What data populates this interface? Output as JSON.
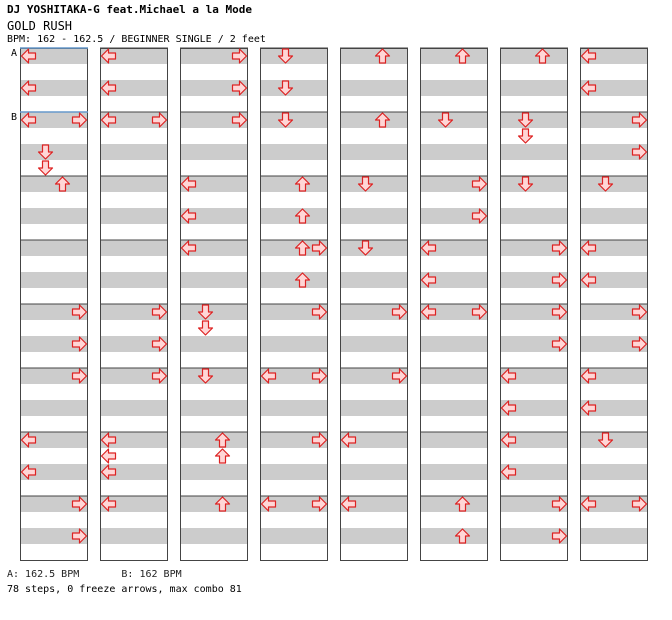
{
  "header": {
    "artist": "DJ YOSHITAKA-G feat.Michael a la Mode",
    "title": "GOLD RUSH",
    "info": "BPM: 162 - 162.5 / BEGINNER SINGLE / 2 feet"
  },
  "markers": [
    {
      "label": "A",
      "measure": 0,
      "beat": 0,
      "color": "#6699cc"
    },
    {
      "label": "B",
      "measure": 1,
      "beat": 0,
      "color": "#6699cc"
    }
  ],
  "legend": {
    "a": "A: 162.5 BPM",
    "b": "B: 162 BPM"
  },
  "summary": "78 steps, 0 freeze arrows, max combo 81",
  "colors": {
    "stripe": "#cccccc",
    "arrow_fill": "#ffd6d6",
    "arrow_stroke": "#dd2222",
    "column_border": "#444444"
  },
  "layout": {
    "columns": 8,
    "measures_per_column": 8,
    "beats_per_measure": 4
  },
  "steps": [
    [
      [
        0,
        "L"
      ],
      [
        2,
        "L"
      ]
    ],
    [
      [
        0,
        "L"
      ],
      [
        0,
        "R"
      ],
      [
        2,
        "D"
      ],
      [
        3,
        "D"
      ]
    ],
    [
      [
        0,
        "U"
      ]
    ],
    [],
    [
      [
        0,
        "R"
      ],
      [
        2,
        "R"
      ]
    ],
    [
      [
        0,
        "R"
      ]
    ],
    [
      [
        0,
        "L"
      ],
      [
        2,
        "L"
      ]
    ],
    [
      [
        0,
        "R"
      ],
      [
        2,
        "R"
      ]
    ],
    [
      [
        0,
        "L"
      ],
      [
        2,
        "L"
      ]
    ],
    [
      [
        0,
        "L"
      ],
      [
        0,
        "R"
      ]
    ],
    [],
    [],
    [
      [
        0,
        "R"
      ],
      [
        2,
        "R"
      ]
    ],
    [
      [
        0,
        "R"
      ]
    ],
    [
      [
        0,
        "L"
      ],
      [
        1,
        "L"
      ],
      [
        2,
        "L"
      ]
    ],
    [
      [
        0,
        "L"
      ]
    ],
    [
      [
        0,
        "R"
      ],
      [
        2,
        "R"
      ]
    ],
    [
      [
        0,
        "R"
      ]
    ],
    [
      [
        0,
        "L"
      ],
      [
        2,
        "L"
      ]
    ],
    [
      [
        0,
        "L"
      ]
    ],
    [
      [
        0,
        "D"
      ],
      [
        1,
        "D"
      ]
    ],
    [
      [
        0,
        "D"
      ]
    ],
    [
      [
        0,
        "U"
      ],
      [
        1,
        "U"
      ]
    ],
    [
      [
        0,
        "U"
      ]
    ],
    [
      [
        0,
        "D"
      ],
      [
        2,
        "D"
      ]
    ],
    [
      [
        0,
        "D"
      ]
    ],
    [
      [
        0,
        "U"
      ],
      [
        2,
        "U"
      ]
    ],
    [
      [
        0,
        "U"
      ],
      [
        0,
        "R"
      ],
      [
        2,
        "U"
      ]
    ],
    [
      [
        0,
        "R"
      ]
    ],
    [
      [
        0,
        "L"
      ],
      [
        0,
        "R"
      ]
    ],
    [
      [
        0,
        "R"
      ]
    ],
    [
      [
        0,
        "L"
      ],
      [
        0,
        "R"
      ]
    ],
    [
      [
        0,
        "U"
      ]
    ],
    [
      [
        0,
        "U"
      ]
    ],
    [
      [
        0,
        "D"
      ]
    ],
    [
      [
        0,
        "D"
      ]
    ],
    [
      [
        0,
        "R"
      ]
    ],
    [
      [
        0,
        "R"
      ]
    ],
    [
      [
        0,
        "L"
      ]
    ],
    [
      [
        0,
        "L"
      ]
    ],
    [
      [
        0,
        "U"
      ]
    ],
    [
      [
        0,
        "D"
      ]
    ],
    [
      [
        0,
        "R"
      ],
      [
        2,
        "R"
      ]
    ],
    [
      [
        0,
        "L"
      ],
      [
        2,
        "L"
      ]
    ],
    [
      [
        0,
        "L"
      ],
      [
        0,
        "R"
      ]
    ],
    [],
    [],
    [
      [
        0,
        "U"
      ],
      [
        2,
        "U"
      ]
    ],
    [
      [
        0,
        "U"
      ]
    ],
    [
      [
        0,
        "D"
      ],
      [
        1,
        "D"
      ]
    ],
    [
      [
        0,
        "D"
      ]
    ],
    [
      [
        0,
        "R"
      ],
      [
        2,
        "R"
      ]
    ],
    [
      [
        0,
        "R"
      ],
      [
        2,
        "R"
      ]
    ],
    [
      [
        0,
        "L"
      ],
      [
        2,
        "L"
      ]
    ],
    [
      [
        0,
        "L"
      ],
      [
        2,
        "L"
      ]
    ],
    [
      [
        0,
        "R"
      ],
      [
        2,
        "R"
      ]
    ],
    [
      [
        0,
        "L"
      ],
      [
        2,
        "L"
      ]
    ],
    [
      [
        0,
        "R"
      ],
      [
        2,
        "R"
      ]
    ],
    [
      [
        0,
        "D"
      ]
    ],
    [
      [
        0,
        "L"
      ],
      [
        2,
        "L"
      ]
    ],
    [
      [
        0,
        "R"
      ],
      [
        2,
        "R"
      ]
    ],
    [
      [
        0,
        "L"
      ],
      [
        2,
        "L"
      ]
    ],
    [
      [
        0,
        "D"
      ]
    ],
    [
      [
        0,
        "L"
      ],
      [
        0,
        "R"
      ]
    ]
  ]
}
